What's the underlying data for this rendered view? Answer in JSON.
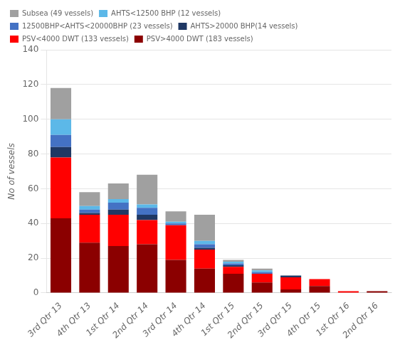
{
  "chart_data": {
    "type": "bar",
    "categories": [
      "3rd Qtr 13",
      "4th Qtr 13",
      "1st Qtr 14",
      "2nd Qtr 14",
      "3rd Qtr 14",
      "4th Qtr 14",
      "1st Qtr 15",
      "2nd Qtr 15",
      "3rd Qtr 15",
      "4th Qtr 15",
      "1st Qtr 16",
      "2nd Qtr 16"
    ],
    "series": [
      {
        "name": "PSV>4000 DWT (183 vessels)",
        "color": "#8b0000",
        "values": [
          43,
          29,
          27,
          28,
          19,
          14,
          11,
          6,
          2,
          4,
          0,
          1
        ]
      },
      {
        "name": "PSV<4000 DWT (133 vessels)",
        "color": "#ff0000",
        "values": [
          35,
          16,
          18,
          14,
          20,
          11,
          4,
          5,
          7,
          4,
          1,
          0
        ]
      },
      {
        "name": "AHTS>20000 BHP(14 vessels)",
        "color": "#1f3864",
        "values": [
          6,
          1,
          3,
          3,
          0,
          1,
          1,
          0,
          1,
          0,
          0,
          0
        ]
      },
      {
        "name": "12500BHP<AHTS<20000BHP (23 vessels)",
        "color": "#4472c4",
        "values": [
          7,
          2,
          4,
          4,
          1,
          2,
          1,
          1,
          0,
          0,
          0,
          0
        ]
      },
      {
        "name": "AHTS<12500 BHP (12 vessels)",
        "color": "#5cb8e8",
        "values": [
          9,
          2,
          2,
          2,
          1,
          2,
          1,
          1,
          0,
          0,
          0,
          0
        ]
      },
      {
        "name": "Subsea (49 vessels)",
        "color": "#a0a0a0",
        "values": [
          18,
          8,
          9,
          17,
          6,
          15,
          1,
          1,
          0,
          0,
          0,
          0
        ]
      }
    ],
    "ylabel": "No of vessels",
    "ylim": [
      0,
      140
    ],
    "yticks": [
      0,
      20,
      40,
      60,
      80,
      100,
      120,
      140
    ],
    "stacked": true,
    "grid": true,
    "legend": "upper left"
  }
}
